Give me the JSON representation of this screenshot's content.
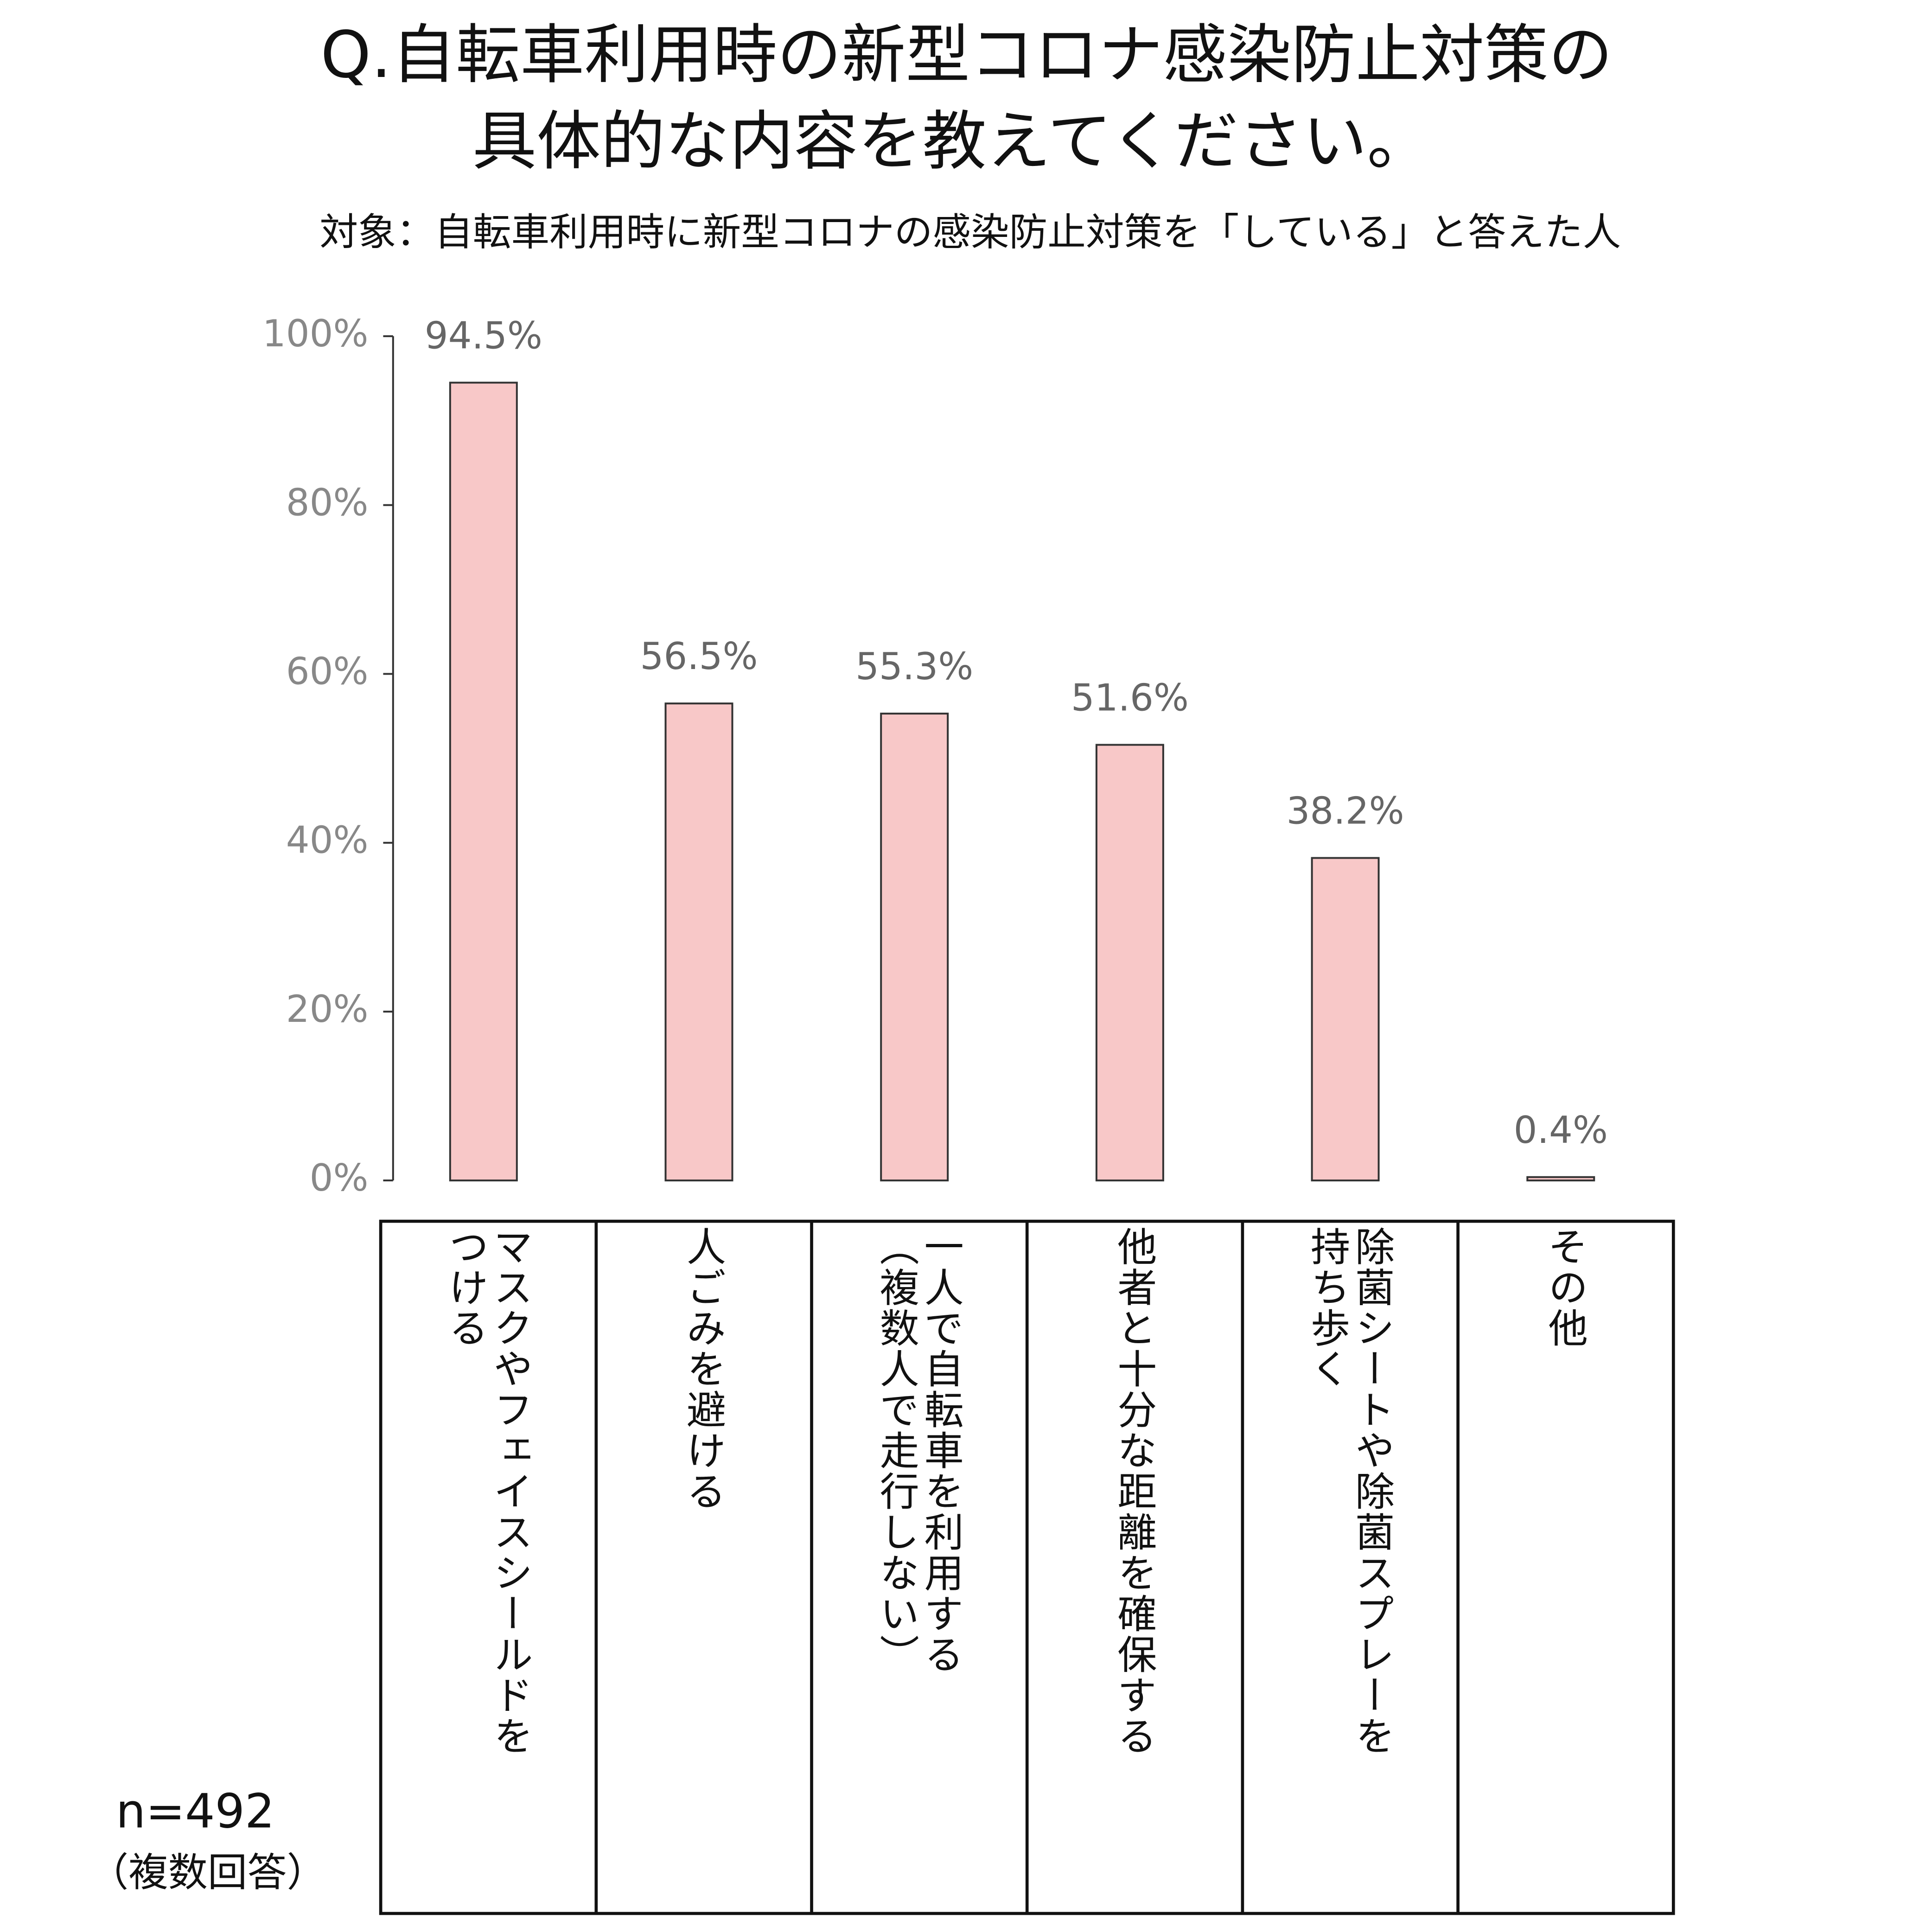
{
  "chart_data": {
    "type": "bar",
    "title": [
      "Q.自転車利用時の新型コロナ感染防止対策の",
      "具体的な内容を教えてください。"
    ],
    "subtitle": "対象：自転車利用時に新型コロナの感染防止対策を「している」と答えた人",
    "categories": [
      "マスクやフェイスシールドを\nつける",
      "人ごみを避ける",
      "一人で自転車を利用する\n（複数人で走行しない）",
      "他者と十分な距離を確保する",
      "除菌シートや除菌スプレーを\n持ち歩く",
      "その他"
    ],
    "values": [
      94.5,
      56.5,
      55.3,
      51.6,
      38.2,
      0.4
    ],
    "value_labels": [
      "94.5%",
      "56.5%",
      "55.3%",
      "51.6%",
      "38.2%",
      "0.4%"
    ],
    "color": "#f8c8c8",
    "ylim": [
      0,
      100
    ],
    "yticks": [
      {
        "value": 0,
        "label": "0%"
      },
      {
        "value": 20,
        "label": "20%"
      },
      {
        "value": 40,
        "label": "40%"
      },
      {
        "value": 60,
        "label": "60%"
      },
      {
        "value": 80,
        "label": "80%"
      },
      {
        "value": 100,
        "label": "100%"
      }
    ],
    "note": [
      "n=492",
      "（複数回答）"
    ]
  }
}
